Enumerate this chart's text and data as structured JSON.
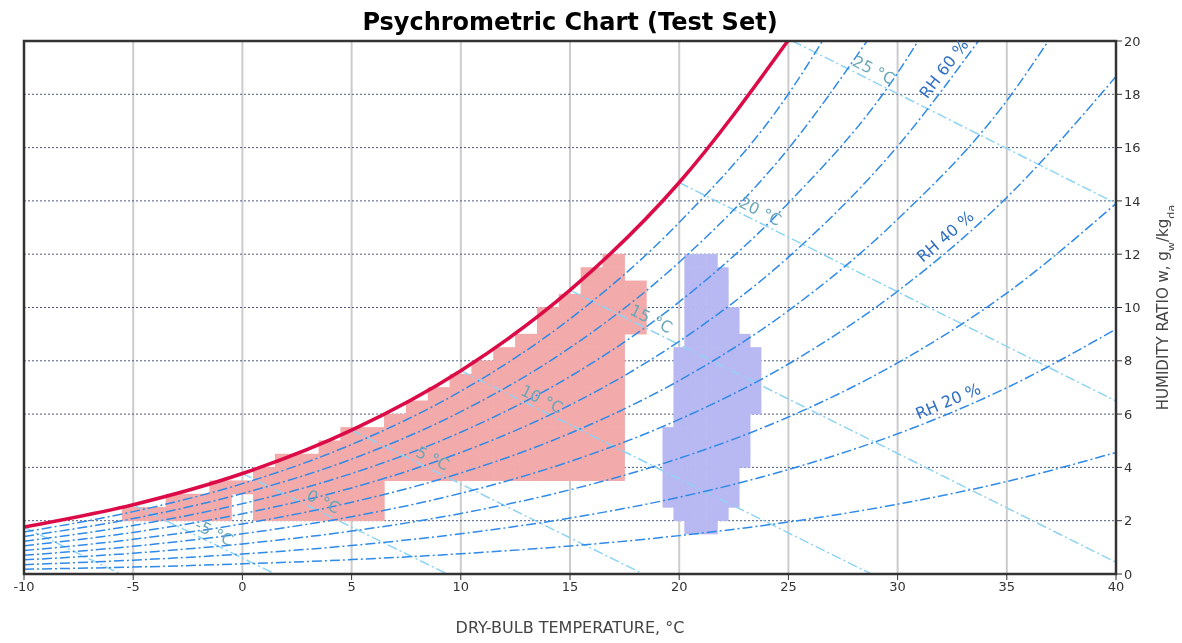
{
  "chart_data": {
    "type": "line",
    "title": "Psychrometric Chart (Test Set)",
    "xlabel": "DRY-BULB TEMPERATURE, °C",
    "ylabel": "HUMIDITY RATIO w, g$_{w}$/kg$_{da}$",
    "xlim": [
      -10,
      40
    ],
    "xticks": [
      -10,
      -5,
      0,
      5,
      10,
      15,
      20,
      25,
      30,
      35,
      40
    ],
    "ylim": [
      0,
      20
    ],
    "yticks": [
      0,
      2,
      4,
      6,
      8,
      10,
      12,
      14,
      16,
      18,
      20
    ],
    "grid": true,
    "series": [
      {
        "type": "scatter",
        "marker": "square",
        "color": "#f2aaaa",
        "x": [
          -5,
          -4,
          -3,
          -3,
          -2,
          -2,
          -1,
          -1,
          -1,
          0,
          1,
          1,
          1,
          1,
          2,
          2,
          2,
          2,
          2,
          3,
          3,
          3,
          3,
          3,
          4,
          4,
          4,
          4,
          4,
          4,
          5,
          5,
          5,
          5,
          5,
          5,
          5,
          6,
          6,
          6,
          6,
          6,
          6,
          6,
          7,
          7,
          7,
          7,
          7,
          8,
          8,
          8,
          8,
          8,
          8,
          9,
          9,
          9,
          9,
          9,
          9,
          9,
          10,
          10,
          10,
          10,
          10,
          10,
          10,
          10,
          11,
          11,
          11,
          11,
          11,
          11,
          11,
          11,
          11,
          12,
          12,
          12,
          12,
          12,
          12,
          12,
          12,
          12,
          12,
          13,
          13,
          13,
          13,
          13,
          13,
          13,
          13,
          13,
          13,
          13,
          14,
          14,
          14,
          14,
          14,
          14,
          14,
          14,
          14,
          14,
          14,
          14,
          14,
          15,
          15,
          15,
          15,
          15,
          15,
          15,
          15,
          15,
          15,
          15,
          15,
          15,
          15,
          16,
          16,
          16,
          16,
          16,
          16,
          16,
          16,
          16,
          16,
          16,
          16,
          16,
          16,
          16,
          16,
          17,
          17,
          17,
          17,
          17,
          17,
          17,
          17,
          17,
          17,
          17,
          17,
          17,
          17,
          17,
          17,
          17,
          18,
          18,
          18,
          18
        ],
        "values": [
          2.25,
          2.25,
          2.25,
          2.75,
          2.25,
          2.75,
          2.25,
          2.75,
          3.25,
          3.25,
          2.25,
          2.75,
          3.25,
          3.75,
          2.25,
          2.75,
          3.25,
          3.75,
          4.25,
          2.25,
          2.75,
          3.25,
          3.75,
          4.25,
          2.25,
          2.75,
          3.25,
          3.75,
          4.25,
          4.75,
          2.25,
          2.75,
          3.25,
          3.75,
          4.25,
          4.75,
          5.25,
          2.25,
          2.75,
          3.25,
          3.75,
          4.25,
          4.75,
          5.25,
          3.75,
          4.25,
          4.75,
          5.25,
          5.75,
          3.75,
          4.25,
          4.75,
          5.25,
          5.75,
          6.25,
          3.75,
          4.25,
          4.75,
          5.25,
          5.75,
          6.25,
          6.75,
          3.75,
          4.25,
          4.75,
          5.25,
          5.75,
          6.25,
          6.75,
          7.25,
          3.75,
          4.25,
          4.75,
          5.25,
          5.75,
          6.25,
          6.75,
          7.25,
          7.75,
          3.75,
          4.25,
          4.75,
          5.25,
          5.75,
          6.25,
          6.75,
          7.25,
          7.75,
          8.25,
          3.75,
          4.25,
          4.75,
          5.25,
          5.75,
          6.25,
          6.75,
          7.25,
          7.75,
          8.25,
          8.75,
          3.75,
          4.25,
          4.75,
          5.25,
          5.75,
          6.25,
          6.75,
          7.25,
          7.75,
          8.25,
          8.75,
          9.25,
          9.75,
          3.75,
          4.25,
          4.75,
          5.25,
          5.75,
          6.25,
          6.75,
          7.25,
          7.75,
          8.25,
          8.75,
          9.25,
          9.75,
          10.25,
          3.75,
          4.25,
          4.75,
          5.25,
          5.75,
          6.25,
          6.75,
          7.25,
          7.75,
          8.25,
          8.75,
          9.25,
          9.75,
          10.25,
          10.75,
          11.25,
          3.75,
          4.25,
          4.75,
          5.25,
          5.75,
          6.25,
          6.75,
          7.25,
          7.75,
          8.25,
          8.75,
          9.25,
          9.75,
          10.25,
          10.75,
          11.25,
          11.75,
          9.25,
          9.75,
          10.25,
          10.75
        ]
      },
      {
        "type": "scatter",
        "marker": "square",
        "color": "#b8b8f2",
        "x": [
          19.5,
          19.5,
          19.5,
          19.5,
          19.5,
          19.5,
          20,
          20,
          20,
          20,
          20,
          20,
          20,
          20,
          20,
          20,
          20,
          20,
          20,
          20.5,
          20.5,
          20.5,
          20.5,
          20.5,
          20.5,
          20.5,
          20.5,
          20.5,
          20.5,
          20.5,
          20.5,
          20.5,
          20.5,
          20.5,
          20.5,
          20.5,
          20.5,
          20.5,
          20.5,
          20.5,
          21,
          21,
          21,
          21,
          21,
          21,
          21,
          21,
          21,
          21,
          21,
          21,
          21,
          21,
          21,
          21,
          21,
          21,
          21,
          21,
          21,
          21.5,
          21.5,
          21.5,
          21.5,
          21.5,
          21.5,
          21.5,
          21.5,
          21.5,
          21.5,
          21.5,
          21.5,
          21.5,
          21.5,
          21.5,
          21.5,
          21.5,
          21.5,
          21.5,
          21.5,
          21.5,
          22,
          22,
          22,
          22,
          22,
          22,
          22,
          22,
          22,
          22,
          22,
          22,
          22,
          22,
          22,
          22,
          22,
          22,
          22,
          22.5,
          22.5,
          22.5,
          22.5,
          22.5,
          22.5,
          22.5,
          22.5,
          22.5,
          22.5,
          22.5,
          22.5,
          22.5,
          22.5,
          22.5,
          23,
          23,
          23,
          23,
          23,
          23,
          23,
          23,
          23,
          23,
          23.5,
          23.5,
          23.5,
          23.5,
          23.5
        ],
        "values": [
          2.75,
          3.25,
          3.75,
          4.25,
          4.75,
          5.25,
          2.25,
          2.75,
          3.25,
          3.75,
          4.25,
          4.75,
          5.25,
          5.75,
          6.25,
          6.75,
          7.25,
          7.75,
          8.25,
          1.75,
          2.25,
          2.75,
          3.25,
          3.75,
          4.25,
          4.75,
          5.25,
          5.75,
          6.25,
          6.75,
          7.25,
          7.75,
          8.25,
          8.75,
          9.25,
          9.75,
          10.25,
          10.75,
          11.25,
          11.75,
          1.75,
          2.25,
          2.75,
          3.25,
          3.75,
          4.25,
          4.75,
          5.25,
          5.75,
          6.25,
          6.75,
          7.25,
          7.75,
          8.25,
          8.75,
          9.25,
          9.75,
          10.25,
          10.75,
          11.25,
          11.75,
          1.75,
          2.25,
          2.75,
          3.25,
          3.75,
          4.25,
          4.75,
          5.25,
          5.75,
          6.25,
          6.75,
          7.25,
          7.75,
          8.25,
          8.75,
          9.25,
          9.75,
          10.25,
          10.75,
          11.25,
          11.75,
          2.25,
          2.75,
          3.25,
          3.75,
          4.25,
          4.75,
          5.25,
          5.75,
          6.25,
          6.75,
          7.25,
          7.75,
          8.25,
          8.75,
          9.25,
          9.75,
          10.25,
          10.75,
          11.25,
          2.75,
          3.25,
          3.75,
          4.25,
          4.75,
          5.25,
          5.75,
          6.25,
          6.75,
          7.25,
          7.75,
          8.25,
          8.75,
          9.25,
          9.75,
          4.25,
          4.75,
          5.25,
          5.75,
          6.25,
          6.75,
          7.25,
          7.75,
          8.25,
          8.75,
          6.25,
          6.75,
          7.25,
          7.75,
          8.25
        ]
      },
      {
        "line_style": "dashed",
        "color": "#8fd3f5",
        "x": [
          -10,
          -5.58
        ],
        "values": [
          1.76,
          0
        ]
      },
      {
        "type": "line",
        "line_style": "dashed",
        "color": "#8fd3f5",
        "name": "-5 °C",
        "x": [
          -5,
          1.5
        ],
        "values": [
          2.6,
          0
        ]
      },
      {
        "type": "line",
        "line_style": "dashed",
        "color": "#8fd3f5",
        "name": "0 °C",
        "x": [
          0,
          9.38
        ],
        "values": [
          3.77,
          0
        ]
      },
      {
        "type": "line",
        "line_style": "dashed",
        "color": "#8fd3f5",
        "name": "5 °C",
        "x": [
          5,
          18.36
        ],
        "values": [
          5.4,
          0
        ]
      },
      {
        "type": "line",
        "line_style": "dashed",
        "color": "#8fd3f5",
        "name": "10 °C",
        "x": [
          10,
          28.8
        ],
        "values": [
          7.63,
          0
        ]
      },
      {
        "type": "line",
        "line_style": "dashed",
        "color": "#8fd3f5",
        "name": "15 °C",
        "x": [
          15,
          40
        ],
        "values": [
          10.65,
          0.44
        ]
      },
      {
        "type": "line",
        "line_style": "dashed",
        "color": "#8fd3f5",
        "name": "20 °C",
        "x": [
          20,
          40
        ],
        "values": [
          14.69,
          6.49
        ]
      },
      {
        "type": "line",
        "line_style": "dashed",
        "color": "#8fd3f5",
        "name": "25 °C",
        "x": [
          25.19,
          40
        ],
        "values": [
          20,
          13.91
        ]
      },
      {
        "type": "line",
        "line_style": "dashed",
        "color": "#2f8ae8",
        "x": [
          -10,
          -5,
          0,
          5,
          10,
          15,
          20,
          25,
          30,
          35,
          40
        ],
        "values": [
          0.18,
          0.26,
          0.38,
          0.54,
          0.76,
          1.05,
          1.44,
          1.95,
          2.62,
          3.47,
          4.56
        ]
      },
      {
        "type": "line",
        "line_style": "dashed",
        "color": "#2f8ae8",
        "name": "RH 20 %",
        "x": [
          -10,
          -5,
          0,
          5,
          10,
          15,
          20,
          25,
          30,
          35,
          40
        ],
        "values": [
          0.35,
          0.52,
          0.75,
          1.07,
          1.51,
          2.1,
          2.88,
          3.92,
          5.26,
          6.99,
          9.19
        ]
      },
      {
        "type": "line",
        "line_style": "dashed",
        "color": "#2f8ae8",
        "x": [
          -10,
          -5,
          0,
          5,
          10,
          15,
          20,
          25,
          30,
          35,
          40
        ],
        "values": [
          0.53,
          0.78,
          1.13,
          1.61,
          2.27,
          3.16,
          4.34,
          5.89,
          7.92,
          10.54,
          13.9
        ]
      },
      {
        "type": "line",
        "line_style": "dashed",
        "color": "#2f8ae8",
        "name": "RH 40 %",
        "x": [
          -10,
          -5,
          0,
          5,
          10,
          15,
          20,
          25,
          30,
          35,
          40
        ],
        "values": [
          0.7,
          1.04,
          1.51,
          2.15,
          3.03,
          4.22,
          5.8,
          7.88,
          10.61,
          14.13,
          18.67
        ]
      },
      {
        "type": "line",
        "line_style": "dashed",
        "color": "#2f8ae8",
        "x": [
          -10,
          -5,
          0,
          5,
          10,
          15,
          20,
          25,
          30,
          35,
          36.9
        ],
        "values": [
          0.88,
          1.3,
          1.88,
          2.69,
          3.79,
          5.28,
          7.26,
          9.88,
          13.31,
          17.76,
          20
        ]
      },
      {
        "type": "line",
        "line_style": "dashed",
        "color": "#2f8ae8",
        "name": "RH 60 %",
        "x": [
          -10,
          -5,
          0,
          5,
          10,
          15,
          20,
          25,
          30,
          33.7
        ],
        "values": [
          1.06,
          1.56,
          2.26,
          3.23,
          4.56,
          6.34,
          8.73,
          11.89,
          16.05,
          20
        ]
      },
      {
        "type": "line",
        "line_style": "dashed",
        "color": "#2f8ae8",
        "x": [
          -10,
          -5,
          0,
          5,
          10,
          15,
          20,
          25,
          30,
          30.94
        ],
        "values": [
          1.23,
          1.82,
          2.64,
          3.77,
          5.32,
          7.41,
          10.21,
          13.92,
          18.8,
          20
        ]
      },
      {
        "type": "line",
        "line_style": "dashed",
        "color": "#2f8ae8",
        "x": [
          -10,
          -5,
          0,
          5,
          10,
          15,
          20,
          25,
          28.6
        ],
        "values": [
          1.41,
          2.08,
          3.02,
          4.31,
          6.09,
          8.49,
          11.7,
          15.96,
          20
        ]
      },
      {
        "type": "line",
        "line_style": "dashed",
        "color": "#2f8ae8",
        "x": [
          -10,
          -5,
          0,
          5,
          10,
          15,
          20,
          25,
          26.56
        ],
        "values": [
          1.58,
          2.34,
          3.39,
          4.86,
          6.86,
          9.57,
          13.19,
          18.01,
          20
        ]
      },
      {
        "line_style": "solid",
        "color": "#dc0a46",
        "x": [
          -10,
          -5,
          0,
          5,
          10,
          15,
          20,
          24.97
        ],
        "values": [
          1.76,
          2.6,
          3.77,
          5.4,
          7.63,
          10.65,
          14.69,
          20
        ]
      }
    ]
  }
}
